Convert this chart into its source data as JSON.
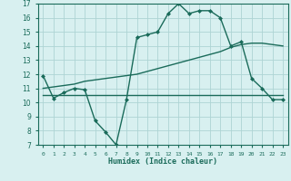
{
  "xlabel": "Humidex (Indice chaleur)",
  "line1_x": [
    0,
    1,
    2,
    3,
    4,
    5,
    6,
    7,
    8,
    9,
    10,
    11,
    12,
    13,
    14,
    15,
    16,
    17,
    18,
    19,
    20,
    21,
    22,
    23
  ],
  "line1_y": [
    11.9,
    10.3,
    10.7,
    11.0,
    10.9,
    8.7,
    7.9,
    7.0,
    10.2,
    14.6,
    14.8,
    15.0,
    16.3,
    17.0,
    16.3,
    16.5,
    16.5,
    16.0,
    14.0,
    14.3,
    11.7,
    11.0,
    10.2,
    10.2
  ],
  "line2_x": [
    0,
    1,
    2,
    3,
    4,
    5,
    6,
    7,
    8,
    9,
    10,
    11,
    12,
    13,
    14,
    15,
    16,
    17,
    18,
    19,
    20,
    21,
    22,
    23
  ],
  "line2_y": [
    10.5,
    10.5,
    10.5,
    10.5,
    10.5,
    10.5,
    10.5,
    10.5,
    10.5,
    10.5,
    10.5,
    10.5,
    10.5,
    10.5,
    10.5,
    10.5,
    10.5,
    10.5,
    10.5,
    10.5,
    10.5,
    10.5,
    10.5,
    10.5
  ],
  "line3_x": [
    0,
    1,
    2,
    3,
    4,
    5,
    6,
    7,
    8,
    9,
    10,
    11,
    12,
    13,
    14,
    15,
    16,
    17,
    18,
    19,
    20,
    21,
    22,
    23
  ],
  "line3_y": [
    11.0,
    11.1,
    11.2,
    11.3,
    11.5,
    11.6,
    11.7,
    11.8,
    11.9,
    12.0,
    12.2,
    12.4,
    12.6,
    12.8,
    13.0,
    13.2,
    13.4,
    13.6,
    13.9,
    14.1,
    14.2,
    14.2,
    14.1,
    14.0
  ],
  "line_color": "#1a6b5a",
  "bg_color": "#d8f0f0",
  "grid_color": "#aed4d4",
  "xlim": [
    -0.5,
    23.5
  ],
  "ylim": [
    7,
    17
  ],
  "yticks": [
    7,
    8,
    9,
    10,
    11,
    12,
    13,
    14,
    15,
    16,
    17
  ],
  "xticks": [
    0,
    1,
    2,
    3,
    4,
    5,
    6,
    7,
    8,
    9,
    10,
    11,
    12,
    13,
    14,
    15,
    16,
    17,
    18,
    19,
    20,
    21,
    22,
    23
  ],
  "marker": "D",
  "marker_size": 2.0,
  "line_width": 1.0
}
